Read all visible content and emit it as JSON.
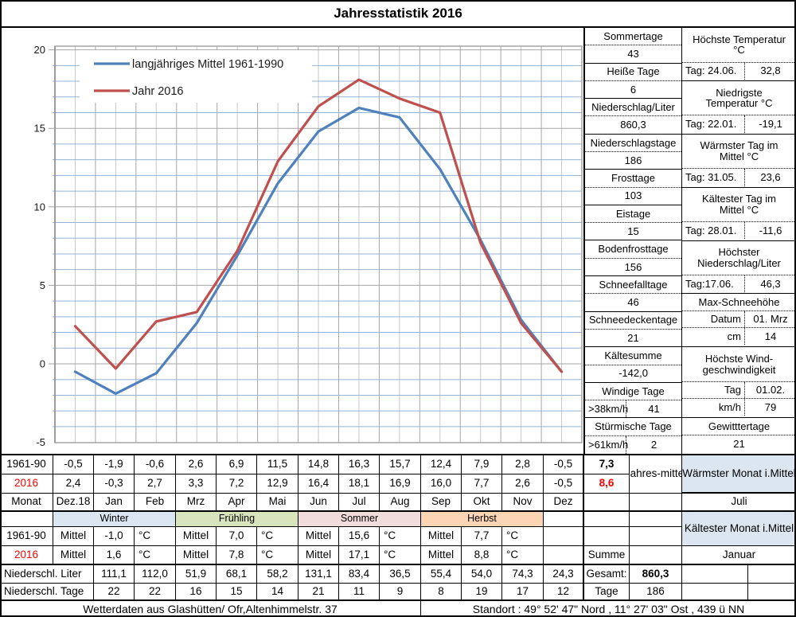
{
  "title": "Jahresstatistik 2016",
  "chart_data": {
    "type": "line",
    "title": "",
    "categories": [
      "Dez.18",
      "Jan",
      "Feb",
      "Mrz",
      "Apr",
      "Mai",
      "Jun",
      "Jul",
      "Aug",
      "Sep",
      "Okt",
      "Nov",
      "Dez"
    ],
    "series": [
      {
        "name": "langjähriges Mittel 1961-1990",
        "color": "#4f81bd",
        "values": [
          -0.5,
          -1.9,
          -0.6,
          2.6,
          6.9,
          11.5,
          14.8,
          16.3,
          15.7,
          12.4,
          7.9,
          2.8,
          -0.5
        ]
      },
      {
        "name": "Jahr 2016",
        "color": "#c0504d",
        "values": [
          2.4,
          -0.3,
          2.7,
          3.3,
          7.2,
          12.9,
          16.4,
          18.1,
          16.9,
          16.0,
          7.7,
          2.6,
          -0.5
        ]
      }
    ],
    "ylim": [
      -5,
      20
    ],
    "y_ticks": [
      20,
      15,
      10,
      5,
      0,
      -5
    ],
    "minor_unit": 1,
    "grid": {
      "major_color": "#a6a6a6",
      "minor_color": "#95b3d7",
      "vertical_color": "#c9c9c9"
    },
    "legend_position": "top-left"
  },
  "panel": {
    "left": [
      {
        "label": "Sommertage",
        "value": "43"
      },
      {
        "label": "Heiße Tage",
        "value": "6"
      },
      {
        "label": "Niederschlag/Liter",
        "value": "860,3"
      },
      {
        "label": "Niederschlagstage",
        "value": "186"
      },
      {
        "label": "Frosttage",
        "value": "103"
      },
      {
        "label": "Eistage",
        "value": "15"
      },
      {
        "label": "Bodenfrosttage",
        "value": "156"
      },
      {
        "label": "Schneefalltage",
        "value": "46"
      },
      {
        "label": "Schneedeckentage",
        "value": "21"
      },
      {
        "label": "Kältesumme",
        "value": "-142,0"
      },
      {
        "label": "Windige Tage",
        "prefix": ">38km/h",
        "value": "41"
      },
      {
        "label": "Stürmische Tage",
        "prefix": ">61km/h",
        "value": "2"
      }
    ],
    "right": [
      {
        "title": [
          "Höchste Temperatur",
          "°C"
        ],
        "rows": [
          {
            "l": "Tag: 24.06.",
            "v": "32,8",
            "align": "left"
          }
        ]
      },
      {
        "title": [
          "Niedrigste",
          "Temperatur °C"
        ],
        "rows": [
          {
            "l": "Tag: 22.01.",
            "v": "-19,1",
            "align": "left"
          }
        ]
      },
      {
        "title": [
          "Wärmster Tag im",
          "Mittel °C"
        ],
        "rows": [
          {
            "l": "Tag: 31.05.",
            "v": "23,6",
            "align": "left"
          }
        ]
      },
      {
        "title": [
          "Kältester Tag im",
          "Mittel °C"
        ],
        "rows": [
          {
            "l": "Tag: 28.01.",
            "v": "-11,6",
            "align": "left"
          }
        ]
      },
      {
        "title": [
          "Höchster",
          "Niederschlag/Liter"
        ],
        "rows": [
          {
            "l": "Tag:17.06.",
            "v": "46,3",
            "align": "left"
          }
        ]
      },
      {
        "title": [
          "Max-Schneehöhe"
        ],
        "rows": [
          {
            "l": "Datum",
            "v": "01. Mrz",
            "align": "right"
          },
          {
            "l": "cm",
            "v": "14",
            "align": "right"
          }
        ]
      },
      {
        "title": [
          "Höchste Wind-",
          "geschwindigkeit"
        ],
        "rows": [
          {
            "l": "Tag",
            "v": "01.02.",
            "align": "right"
          },
          {
            "l": "km/h",
            "v": "79",
            "align": "right"
          }
        ]
      },
      {
        "title": [
          "Gewitttertage"
        ],
        "rows": [
          {
            "v": "21"
          }
        ]
      }
    ]
  },
  "table": {
    "months": [
      "Dez.18",
      "Jan",
      "Feb",
      "Mrz",
      "Apr",
      "Mai",
      "Jun",
      "Jul",
      "Aug",
      "Sep",
      "Okt",
      "Nov",
      "Dez"
    ],
    "row_1961_90": {
      "label": "1961-90",
      "values": [
        "-0,5",
        "-1,9",
        "-0,6",
        "2,6",
        "6,9",
        "11,5",
        "14,8",
        "16,3",
        "15,7",
        "12,4",
        "7,9",
        "2,8",
        "-0,5"
      ],
      "annual": "7,3"
    },
    "row_2016": {
      "label": "2016",
      "values": [
        "2,4",
        "-0,3",
        "2,7",
        "3,3",
        "7,2",
        "12,9",
        "16,4",
        "18,1",
        "16,9",
        "16,0",
        "7,7",
        "2,6",
        "-0,5"
      ],
      "annual": "8,6"
    },
    "monat_label": "Monat",
    "annual_label": [
      "Jahres-",
      "mittel"
    ],
    "warmest": {
      "label": [
        "Wärmster Monat i.",
        "Mittel"
      ],
      "value": "Juli",
      "bg": "#dce6f1"
    },
    "coldest": {
      "label": [
        "Kältester Monat i.",
        "Mittel"
      ],
      "value": "Januar",
      "bg": "#dce6f1"
    },
    "seasons": {
      "names": [
        "Winter",
        "Frühling",
        "Sommer",
        "Herbst"
      ],
      "colors": [
        "#dce6f1",
        "#d8e4bc",
        "#f2dcdb",
        "#fcd5b4"
      ],
      "mittel_label": "Mittel",
      "unit": "°C",
      "row_1961_90": {
        "label": "1961-90",
        "values": [
          "-1,0",
          "7,0",
          "15,6",
          "7,7"
        ]
      },
      "row_2016": {
        "label": "2016",
        "values": [
          "1,6",
          "7,8",
          "17,1",
          "8,8"
        ]
      },
      "summe_label": "Summe"
    },
    "precip_liter": {
      "label": "Niederschl. Liter",
      "values": [
        "111,1",
        "112,0",
        "51,9",
        "68,1",
        "58,2",
        "131,1",
        "83,4",
        "36,5",
        "55,4",
        "54,0",
        "74,3",
        "24,3"
      ],
      "total_label": "Gesamt:",
      "total": "860,3"
    },
    "precip_tage": {
      "label": "Niederschl. Tage",
      "values": [
        "22",
        "22",
        "16",
        "15",
        "14",
        "21",
        "11",
        "9",
        "8",
        "19",
        "17",
        "12"
      ],
      "total_label": "Tage",
      "total": "186"
    }
  },
  "footer": {
    "left": "Wetterdaten aus Glashütten/ Ofr,Altenhimmelstr. 37",
    "right": "Standort : 49° 52' 47\" Nord , 11° 27' 03\" Ost , 439 ü NN"
  },
  "colors": {
    "highlight_blue": "#dce6f1",
    "red_text": "#ff0000"
  }
}
